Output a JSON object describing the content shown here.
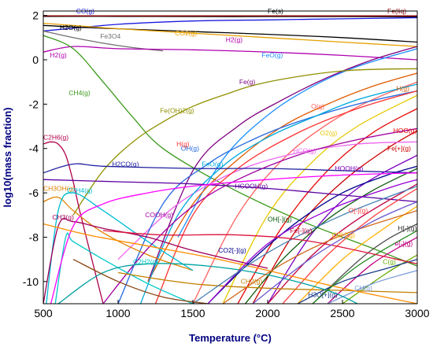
{
  "chart_data": {
    "type": "line",
    "xlabel": "Temperature (°C)",
    "ylabel": "log10(mass fraction)",
    "xlim": [
      500,
      3000
    ],
    "ylim": [
      -11,
      2.2
    ],
    "x_ticks": [
      500,
      1000,
      1500,
      2000,
      2500,
      3000
    ],
    "y_ticks": [
      2,
      0,
      -2,
      -4,
      -6,
      -8,
      -10
    ],
    "grid": false,
    "series": [
      {
        "name": "Fe(s)",
        "color": "#000000",
        "x": [
          500,
          1000,
          1500,
          2000,
          2500,
          3000
        ],
        "y": [
          1.96,
          1.96,
          1.95,
          1.95,
          1.95,
          1.94
        ],
        "label_at": [
          2000,
          2.1
        ],
        "label_color": "#000000"
      },
      {
        "name": "Fe(liq)",
        "color": "#8b0000",
        "x": [
          500,
          1500,
          2500,
          3000
        ],
        "y": [
          1.98,
          1.98,
          1.98,
          1.98
        ],
        "label_at": [
          2800,
          2.1
        ],
        "label_color": "#8b0000"
      },
      {
        "name": "CO(g)",
        "color": "#1a1adf",
        "x": [
          500,
          1000,
          1500,
          2000,
          2500,
          3000
        ],
        "y": [
          1.3,
          1.6,
          1.75,
          1.8,
          1.85,
          1.9
        ],
        "label_at": [
          720,
          2.1
        ],
        "label_color": "#1a1adf"
      },
      {
        "name": "H2O(g)",
        "color": "#000000",
        "x": [
          500,
          800,
          1200,
          1600,
          2000,
          2500,
          3000
        ],
        "y": [
          1.55,
          1.45,
          1.35,
          1.25,
          1.15,
          1.0,
          0.8
        ],
        "label_at": [
          610,
          1.35
        ],
        "label_color": "#000000"
      },
      {
        "name": "Fe3O4",
        "color": "#707070",
        "x": [
          500,
          700,
          900,
          1100,
          1300
        ],
        "y": [
          1.3,
          1.0,
          0.75,
          0.55,
          0.4
        ],
        "label_at": [
          880,
          0.95
        ],
        "label_color": "#707070"
      },
      {
        "name": "CO2(g)",
        "color": "#e6a000",
        "x": [
          500,
          1000,
          1500,
          2000,
          2500,
          3000
        ],
        "y": [
          1.65,
          1.4,
          1.2,
          1.0,
          0.8,
          0.6
        ],
        "label_at": [
          1380,
          1.1
        ],
        "label_color": "#e6a000"
      },
      {
        "name": "H2(g)",
        "color": "#b000b0",
        "x": [
          500,
          700,
          1000,
          1500,
          2000,
          2500,
          3000
        ],
        "y": [
          0.35,
          0.6,
          0.5,
          0.45,
          0.35,
          0.2,
          0.0
        ],
        "label_at": [
          1720,
          0.8
        ],
        "label_color": "#b000b0",
        "label2_at": [
          545,
          0.1
        ]
      },
      {
        "name": "CH4(g)",
        "color": "#3a9a1a",
        "x": [
          500,
          700,
          900,
          1100,
          1300,
          1700,
          2200,
          2700,
          3000
        ],
        "y": [
          1.1,
          0.5,
          -1.0,
          -2.6,
          -4.0,
          -5.6,
          -7.2,
          -8.5,
          -9.3
        ],
        "label_at": [
          670,
          -1.6
        ],
        "label_color": "#3a9a1a"
      },
      {
        "name": "FeO(g)",
        "color": "#1e90ff",
        "x": [
          1400,
          1700,
          2000,
          2300,
          2600,
          3000
        ],
        "y": [
          -8.0,
          -4.5,
          -2.5,
          -1.2,
          -0.3,
          0.5
        ],
        "label_at": [
          1960,
          0.1
        ],
        "label_color": "#1e90ff"
      },
      {
        "name": "Fe(g)",
        "color": "#7f007f",
        "x": [
          1200,
          1500,
          1800,
          2100,
          2400,
          2700,
          3000
        ],
        "y": [
          -10,
          -5.0,
          -3.0,
          -1.8,
          -0.8,
          0.0,
          0.6
        ],
        "label_at": [
          1810,
          -1.1
        ],
        "label_color": "#7f007f"
      },
      {
        "name": "Fe(OH)2(g)",
        "color": "#8f8f00",
        "x": [
          700,
          900,
          1100,
          1300,
          1500,
          1700,
          2000,
          2500,
          3000
        ],
        "y": [
          -7.0,
          -5.0,
          -3.7,
          -2.8,
          -2.1,
          -1.6,
          -1.0,
          -0.5,
          -0.4
        ],
        "label_at": [
          1280,
          -2.4
        ],
        "label_color": "#8f8f00"
      },
      {
        "name": "H(g)",
        "color": "#e05a00",
        "x": [
          1200,
          1500,
          1800,
          2100,
          2400,
          2700,
          3000
        ],
        "y": [
          -10,
          -6.5,
          -4.5,
          -3.0,
          -2.0,
          -1.2,
          -0.6
        ],
        "label_at": [
          2860,
          -1.4
        ],
        "label_color": "#e05a00"
      },
      {
        "name": "O(g)",
        "color": "#ff6060",
        "x": [
          1500,
          1800,
          2100,
          2400,
          2700,
          3000
        ],
        "y": [
          -11,
          -7.0,
          -4.5,
          -2.9,
          -1.8,
          -1.0
        ],
        "label_at": [
          2290,
          -2.2
        ],
        "label_color": "#ff6060"
      },
      {
        "name": "O2(g)",
        "color": "#e6c800",
        "x": [
          1700,
          2000,
          2300,
          2600,
          3000
        ],
        "y": [
          -11,
          -7.0,
          -4.6,
          -3.0,
          -1.6
        ],
        "label_at": [
          2350,
          -3.4
        ],
        "label_color": "#e6c800"
      },
      {
        "name": "HOO(g)",
        "color": "#e60000",
        "x": [
          1800,
          2100,
          2400,
          2700,
          3000
        ],
        "y": [
          -11,
          -7.5,
          -5.0,
          -3.3,
          -2.2
        ],
        "label_at": [
          2840,
          -3.3
        ],
        "label_color": "#e60000"
      },
      {
        "name": "Fe[+](g)",
        "color": "#cc0000",
        "x": [
          1900,
          2200,
          2500,
          2800,
          3000
        ],
        "y": [
          -11,
          -7.6,
          -5.5,
          -4.0,
          -3.2
        ],
        "label_at": [
          2800,
          -4.1
        ],
        "label_color": "#cc0000"
      },
      {
        "name": "HCO(g)",
        "color": "#ee66ee",
        "x": [
          1000,
          1400,
          1800,
          2200,
          2600,
          3000
        ],
        "y": [
          -9.0,
          -6.5,
          -5.0,
          -4.2,
          -3.8,
          -3.7
        ],
        "label_at": [
          2170,
          -4.2
        ],
        "label_color": "#ee66ee"
      },
      {
        "name": "OH(g)",
        "color": "#2266dd",
        "x": [
          1000,
          1300,
          1600,
          1900,
          2200,
          2600,
          3000
        ],
        "y": [
          -11,
          -6.5,
          -4.7,
          -3.6,
          -2.8,
          -2.0,
          -1.4
        ],
        "label_at": [
          1420,
          -4.1
        ],
        "label_color": "#2266dd"
      },
      {
        "name": "FeO(g)",
        "color": "#00aadd",
        "x": [
          1150,
          1400,
          1700,
          2000,
          2300,
          2600,
          3000
        ],
        "y": [
          -11,
          -7.0,
          -4.8,
          -3.5,
          -2.6,
          -1.8,
          -1.1
        ],
        "label_at": [
          1560,
          -4.8
        ],
        "label_color": "#00aadd"
      },
      {
        "name": "H(g)",
        "color": "#ff3333",
        "x": [
          1250,
          1500,
          1800,
          2200,
          2600,
          3000
        ],
        "y": [
          -11,
          -7.0,
          -4.9,
          -3.3,
          -2.2,
          -1.4
        ],
        "label_at": [
          1390,
          -3.9
        ],
        "label_color": "#ff3333"
      },
      {
        "name": "C2H6(g)",
        "color": "#b0004a",
        "x": [
          500,
          550,
          600,
          650,
          700,
          750,
          900
        ],
        "y": [
          -3.8,
          -3.7,
          -3.8,
          -4.3,
          -5.5,
          -7.0,
          -11
        ],
        "label_at": [
          500,
          -3.6
        ],
        "label_color": "#b0004a"
      },
      {
        "name": "H2CO(g)",
        "color": "#2020a0",
        "x": [
          500,
          700,
          900,
          1500,
          2000,
          2500,
          3000
        ],
        "y": [
          -5.1,
          -4.7,
          -4.8,
          -4.9,
          -4.9,
          -5.0,
          -5.1
        ],
        "label_at": [
          960,
          -4.8
        ],
        "label_color": "#2020a0"
      },
      {
        "name": "HOOH(g)",
        "color": "#7a00c0",
        "x": [
          2000,
          2300,
          2600,
          3000
        ],
        "y": [
          -11,
          -7.8,
          -5.8,
          -4.3
        ],
        "label_at": [
          2450,
          -5.0
        ],
        "label_color": "#7a00c0"
      },
      {
        "name": "HCOOH(g)",
        "color": "#5a00a0",
        "x": [
          500,
          1000,
          1500,
          2000,
          2500,
          3000
        ],
        "y": [
          -5.4,
          -5.5,
          -5.6,
          -5.8,
          -6.1,
          -6.4
        ],
        "label_at": [
          1780,
          -5.8
        ],
        "label_color": "#5a00a0"
      },
      {
        "name": "CH3OH(g)",
        "color": "#e08000",
        "x": [
          500,
          600,
          700,
          900,
          1200,
          1500
        ],
        "y": [
          -6.4,
          -6.2,
          -6.8,
          -7.8,
          -8.8,
          -9.5
        ],
        "label_at": [
          500,
          -5.9
        ],
        "label_color": "#e08000"
      },
      {
        "name": "C2H4(g)",
        "color": "#00bcd4",
        "x": [
          520,
          600,
          700,
          900,
          1200,
          1500
        ],
        "y": [
          -11,
          -6.8,
          -6.0,
          -6.8,
          -8.2,
          -9.5
        ],
        "label_at": [
          660,
          -6.0
        ],
        "label_color": "#00bcd4"
      },
      {
        "name": "COOH(g)",
        "color": "#a000a0",
        "x": [
          900,
          1200,
          1500,
          1800,
          2200,
          2600,
          3000
        ],
        "y": [
          -11,
          -8.5,
          -6.6,
          -5.4,
          -4.3,
          -3.6,
          -3.1
        ],
        "label_at": [
          1180,
          -7.1
        ],
        "label_color": "#a000a0"
      },
      {
        "name": "CH3(g)",
        "color": "#a0005a",
        "x": [
          500,
          600,
          700,
          900,
          1200,
          1500,
          2000
        ],
        "y": [
          -11,
          -7.5,
          -7.3,
          -7.6,
          -8.0,
          -8.6,
          -9.4
        ],
        "label_at": [
          560,
          -7.2
        ],
        "label_color": "#a0005a"
      },
      {
        "name": "C2H2(g)",
        "color": "#00c8c8",
        "x": [
          580,
          650,
          700,
          900,
          1200,
          1500
        ],
        "y": [
          -11,
          -8.0,
          -8.2,
          -9.0,
          -10.1,
          -11
        ],
        "label_at": [
          1100,
          -9.2
        ],
        "label_color": "#00c8c8"
      },
      {
        "name": "CO2[-](g)",
        "color": "#00008b",
        "x": [
          1600,
          1900,
          2200,
          2500,
          2800,
          3000
        ],
        "y": [
          -11,
          -9.0,
          -7.3,
          -6.0,
          -5.2,
          -4.8
        ],
        "label_at": [
          1670,
          -8.7
        ],
        "label_color": "#00008b"
      },
      {
        "name": "OH[-](g)",
        "color": "#0a5a0a",
        "x": [
          1850,
          2100,
          2400,
          2700,
          3000
        ],
        "y": [
          -11,
          -9.0,
          -7.2,
          -5.9,
          -4.9
        ],
        "label_at": [
          2000,
          -7.3
        ],
        "label_color": "#0a5a0a"
      },
      {
        "name": "Fe[-](g)",
        "color": "#c00040",
        "x": [
          2000,
          2300,
          2600,
          3000
        ],
        "y": [
          -11,
          -8.8,
          -7.2,
          -5.6
        ],
        "label_at": [
          2150,
          -7.8
        ],
        "label_color": "#c00040"
      },
      {
        "name": "O[-](g)",
        "color": "#ff4040",
        "x": [
          2100,
          2400,
          2700,
          3000
        ],
        "y": [
          -11,
          -8.8,
          -7.1,
          -5.8
        ],
        "label_at": [
          2540,
          -6.9
        ],
        "label_color": "#ff4040"
      },
      {
        "name": "O2[-](g)",
        "color": "#ffb000",
        "x": [
          2200,
          2500,
          2800,
          3000
        ],
        "y": [
          -11,
          -9.0,
          -7.5,
          -6.6
        ],
        "label_at": [
          2430,
          -8.0
        ],
        "label_color": "#ffb000"
      },
      {
        "name": "H[-](g)",
        "color": "#505050",
        "x": [
          2300,
          2600,
          2800,
          3000
        ],
        "y": [
          -11,
          -9.1,
          -8.1,
          -7.4
        ],
        "label_at": [
          2870,
          -7.7
        ],
        "label_color": "#303030"
      },
      {
        "name": "e[-](g)",
        "color": "#c00080",
        "x": [
          2400,
          2700,
          3000
        ],
        "y": [
          -11,
          -9.2,
          -8.0
        ],
        "label_at": [
          2850,
          -8.4
        ],
        "label_color": "#c00080"
      },
      {
        "name": "C(g)",
        "color": "#66aa00",
        "x": [
          2500,
          2800,
          3000
        ],
        "y": [
          -11,
          -9.6,
          -8.8
        ],
        "label_at": [
          2770,
          -9.2
        ],
        "label_color": "#66aa00"
      },
      {
        "name": "CH2(g)",
        "color": "#c08000",
        "x": [
          1000,
          1500,
          2000,
          2500,
          3000
        ],
        "y": [
          -9.6,
          -10.1,
          -10.3,
          -10.4,
          -10.5
        ],
        "label_at": [
          1820,
          -10.1
        ],
        "label_color": "#c08000"
      },
      {
        "name": "H3O[+](g)",
        "color": "#1a3a8a",
        "x": [
          2200,
          2500,
          2800,
          3000
        ],
        "y": [
          -11,
          -10.0,
          -9.4,
          -9.0
        ],
        "label_at": [
          2270,
          -10.7
        ],
        "label_color": "#1a3a8a"
      },
      {
        "name": "CH(g)",
        "color": "#7a9ad8",
        "x": [
          2400,
          2700,
          3000
        ],
        "y": [
          -11,
          -10.1,
          -9.5
        ],
        "label_at": [
          2580,
          -10.4
        ],
        "label_color": "#7a9ad8"
      },
      {
        "name": "",
        "color": "#ff00ff",
        "x": [
          550,
          700,
          900,
          1200,
          1500,
          2000,
          2500,
          3000
        ],
        "y": [
          -11,
          -7.5,
          -6.5,
          -6.0,
          -5.7,
          -5.4,
          -5.2,
          -5.1
        ]
      },
      {
        "name": "",
        "color": "#ff8c00",
        "x": [
          500,
          800,
          1200,
          1600,
          2000,
          2500,
          3000
        ],
        "y": [
          -7.4,
          -7.9,
          -8.4,
          -8.9,
          -9.5,
          -10.3,
          -11
        ]
      },
      {
        "name": "",
        "color": "#00a0a0",
        "x": [
          600,
          900,
          1200,
          1600,
          2000,
          2400,
          2600
        ],
        "y": [
          -11,
          -9.6,
          -9.2,
          -9.3,
          -9.7,
          -10.4,
          -11
        ]
      },
      {
        "name": "",
        "color": "#9400d3",
        "x": [
          1600,
          2000,
          2400,
          2800,
          3000
        ],
        "y": [
          -11,
          -8.3,
          -6.8,
          -5.8,
          -5.4
        ]
      },
      {
        "name": "",
        "color": "#d2691e",
        "x": [
          1700,
          2100,
          2500,
          3000
        ],
        "y": [
          -11,
          -9.2,
          -7.9,
          -6.8
        ]
      },
      {
        "name": "",
        "color": "#4682b4",
        "x": [
          1500,
          2000,
          2500,
          3000
        ],
        "y": [
          -11,
          -8.7,
          -7.0,
          -5.7
        ]
      },
      {
        "name": "",
        "color": "#8b4513",
        "x": [
          700,
          1000,
          1300,
          1600
        ],
        "y": [
          -9.0,
          -10.0,
          -10.7,
          -11
        ]
      },
      {
        "name": "",
        "color": "#228b22",
        "x": [
          2300,
          2600,
          3000
        ],
        "y": [
          -11,
          -9.3,
          -7.7
        ]
      },
      {
        "name": "",
        "color": "#dc143c",
        "x": [
          900,
          1300,
          1800,
          2300,
          3000
        ],
        "y": [
          -7.7,
          -7.9,
          -7.9,
          -8.2,
          -9.2
        ]
      },
      {
        "name": "",
        "color": "#6a5acd",
        "x": [
          1900,
          2300,
          2700,
          3000
        ],
        "y": [
          -11,
          -8.9,
          -7.3,
          -6.4
        ]
      }
    ]
  }
}
